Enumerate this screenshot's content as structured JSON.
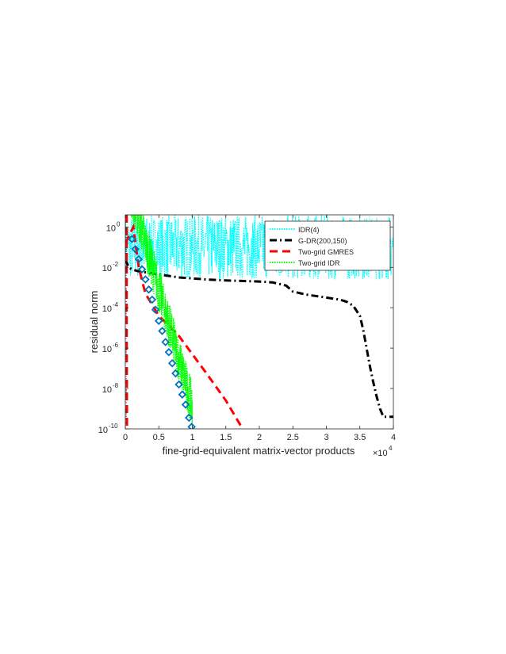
{
  "chart_data": {
    "type": "line",
    "title": "",
    "xlabel": "fine-grid-equivalent matrix-vector products",
    "ylabel": "residual norm",
    "x_multiplier_label": "×10",
    "x_multiplier_exponent": "4",
    "xlim": [
      0,
      4
    ],
    "ylim_log10": [
      -10,
      0.6
    ],
    "yscale": "log",
    "grid": false,
    "legend_position": "top-right",
    "x_ticks": [
      0,
      0.5,
      1,
      1.5,
      2,
      2.5,
      3,
      3.5,
      4
    ],
    "x_tick_labels": [
      "0",
      "0.5",
      "1",
      "1.5",
      "2",
      "2.5",
      "3",
      "3.5",
      "4"
    ],
    "y_ticks_log10": [
      -10,
      -8,
      -6,
      -4,
      -2,
      0
    ],
    "y_tick_bases": [
      "10",
      "10",
      "10",
      "10",
      "10",
      "10"
    ],
    "y_tick_exponents": [
      "-10",
      "-8",
      "-6",
      "-4",
      "-2",
      "0"
    ],
    "series": [
      {
        "name": "IDR(4)",
        "color": "#00ffff",
        "style": "dotted",
        "shape": "noisy-band",
        "x_start": 0,
        "x_end": 4,
        "log10_low": -2.6,
        "log10_high": 0.6
      },
      {
        "name": "G-DR(200,150)",
        "color": "#000000",
        "style": "dash-dot",
        "x": [
          0,
          0.05,
          0.1,
          0.2,
          0.3,
          0.4,
          0.5,
          0.6,
          0.7,
          0.8,
          1.0,
          1.2,
          1.5,
          2.0,
          2.2,
          2.4,
          2.5,
          2.7,
          3.0,
          3.2,
          3.3,
          3.4,
          3.5,
          3.55,
          3.6,
          3.65,
          3.7,
          3.75,
          3.8,
          3.85,
          4.0
        ],
        "log10": [
          -1.6,
          -2.0,
          -2.1,
          -2.2,
          -2.25,
          -2.3,
          -2.35,
          -2.4,
          -2.45,
          -2.5,
          -2.55,
          -2.6,
          -2.65,
          -2.7,
          -2.75,
          -2.9,
          -3.2,
          -3.35,
          -3.5,
          -3.6,
          -3.7,
          -3.9,
          -4.4,
          -5.1,
          -6.0,
          -6.9,
          -7.7,
          -8.4,
          -9.0,
          -9.4,
          -9.4
        ]
      },
      {
        "name": "Two-grid GMRES",
        "color": "#ff0000",
        "style": "dashed",
        "x": [
          0,
          0.12,
          0.2,
          0.3,
          0.5,
          0.8,
          1.0,
          1.2,
          1.5,
          1.75
        ],
        "log10": [
          -0.8,
          0.0,
          -2.0,
          -3.3,
          -4.4,
          -5.4,
          -6.3,
          -7.2,
          -8.6,
          -10.0
        ]
      },
      {
        "name": "Two-grid IDR",
        "color": "#00ff00",
        "style": "dotted",
        "shape": "noisy-decay",
        "x_start": 0.08,
        "x_end": 1.0,
        "log10_start": 0.6,
        "log10_end": -10.0,
        "noise_amplitude": 2.3
      },
      {
        "name": "",
        "color": "#0072bd",
        "style": "markers",
        "marker": "diamond",
        "x": [
          0.1,
          0.15,
          0.2,
          0.25,
          0.3,
          0.35,
          0.4,
          0.45,
          0.5,
          0.55,
          0.6,
          0.65,
          0.7,
          0.75,
          0.8,
          0.85,
          0.9,
          0.95,
          0.99
        ],
        "log10": [
          -0.6,
          -1.1,
          -1.6,
          -2.1,
          -2.6,
          -3.1,
          -3.6,
          -4.1,
          -4.65,
          -5.15,
          -5.7,
          -6.2,
          -6.75,
          -7.25,
          -7.8,
          -8.3,
          -8.8,
          -9.45,
          -9.9
        ]
      },
      {
        "name": "",
        "color": "#ff0000",
        "style": "dashed",
        "x": [
          0.02,
          0.02,
          0.025
        ],
        "log10": [
          0.6,
          -5.0,
          -10.0
        ]
      }
    ]
  }
}
